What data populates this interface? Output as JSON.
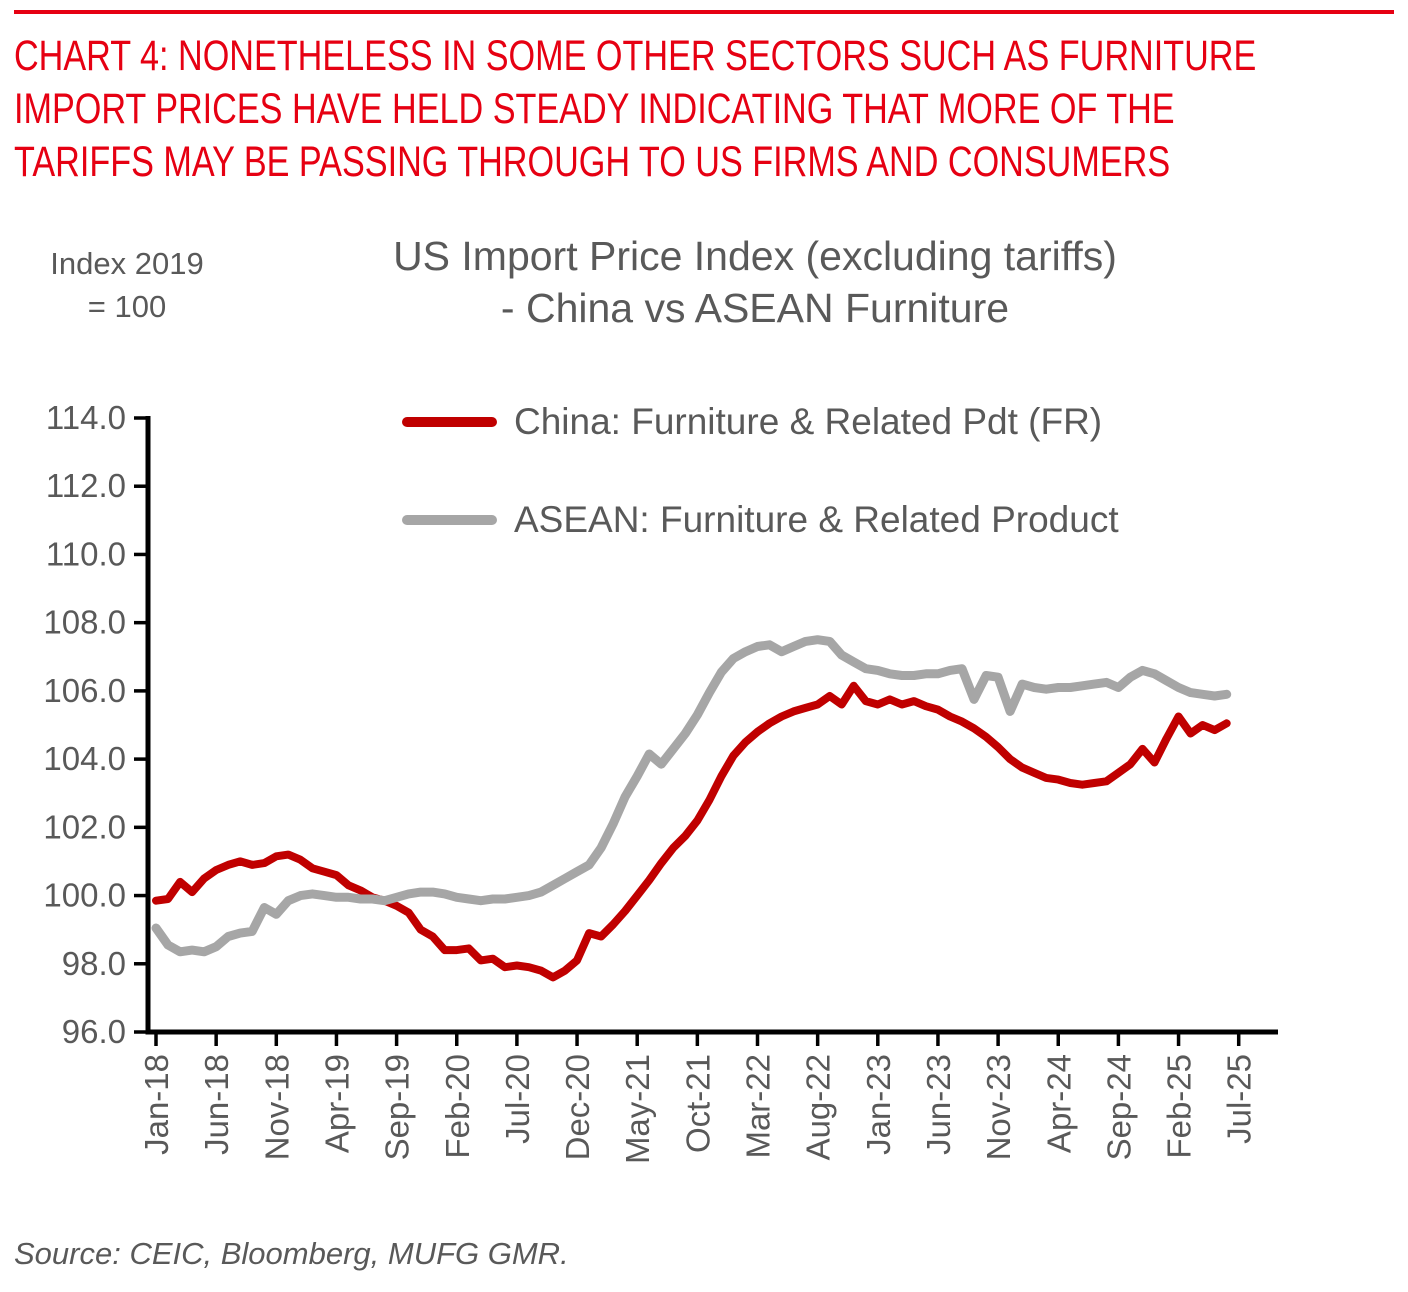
{
  "header": {
    "color": "#e60012",
    "lines": [
      "CHART 4: NONETHELESS IN SOME OTHER SECTORS SUCH AS FURNITURE",
      "IMPORT PRICES HAVE HELD STEADY INDICATING THAT MORE OF THE",
      "TARIFFS MAY BE PASSING THROUGH TO US FIRMS AND CONSUMERS"
    ]
  },
  "source": "Source: CEIC, Bloomberg, MUFG GMR.",
  "chart_data": {
    "type": "line",
    "title_lines": [
      "US Import Price Index (excluding tariffs)",
      "- China vs ASEAN Furniture"
    ],
    "unit_note_lines": [
      "Index 2019",
      "= 100"
    ],
    "ylim": [
      96,
      114
    ],
    "ytick_labels": [
      "96.0",
      "98.0",
      "100.0",
      "102.0",
      "104.0",
      "106.0",
      "108.0",
      "110.0",
      "112.0",
      "114.0"
    ],
    "x_tick_labels": [
      "Jan-18",
      "Jun-18",
      "Nov-18",
      "Apr-19",
      "Sep-19",
      "Feb-20",
      "Jul-20",
      "Dec-20",
      "May-21",
      "Oct-21",
      "Mar-22",
      "Aug-22",
      "Jan-23",
      "Jun-23",
      "Nov-23",
      "Apr-24",
      "Sep-24",
      "Feb-25",
      "Jul-25"
    ],
    "x_label_interval_months": 5,
    "x_start": "Jan-18",
    "frequency": "monthly",
    "grid": false,
    "legend_position": "top-center",
    "axis_color": "#000000",
    "label_color": "#595959",
    "series": [
      {
        "id": "china",
        "name": "China: Furniture & Related Pdt (FR)",
        "color": "#c00000",
        "stroke_width": 8,
        "values": [
          99.85,
          99.9,
          100.4,
          100.1,
          100.5,
          100.75,
          100.9,
          101.0,
          100.9,
          100.95,
          101.15,
          101.2,
          101.05,
          100.8,
          100.7,
          100.6,
          100.3,
          100.15,
          99.95,
          99.85,
          99.7,
          99.5,
          99.0,
          98.8,
          98.4,
          98.4,
          98.45,
          98.1,
          98.15,
          97.9,
          97.95,
          97.9,
          97.8,
          97.6,
          97.8,
          98.1,
          98.9,
          98.8,
          99.15,
          99.55,
          100.0,
          100.45,
          100.95,
          101.4,
          101.75,
          102.2,
          102.8,
          103.5,
          104.1,
          104.5,
          104.8,
          105.05,
          105.25,
          105.4,
          105.5,
          105.6,
          105.85,
          105.6,
          106.15,
          105.7,
          105.6,
          105.75,
          105.6,
          105.7,
          105.55,
          105.45,
          105.25,
          105.1,
          104.9,
          104.65,
          104.35,
          104.0,
          103.75,
          103.6,
          103.45,
          103.4,
          103.3,
          103.25,
          103.3,
          103.35,
          103.6,
          103.85,
          104.3,
          103.9,
          104.6,
          105.25,
          104.75,
          105.0,
          104.85,
          105.05
        ]
      },
      {
        "id": "asean",
        "name": "ASEAN: Furniture & Related Product",
        "color": "#a6a6a6",
        "stroke_width": 9,
        "values": [
          99.05,
          98.55,
          98.35,
          98.4,
          98.35,
          98.5,
          98.8,
          98.9,
          98.95,
          99.65,
          99.45,
          99.85,
          100.0,
          100.05,
          100.0,
          99.95,
          99.95,
          99.9,
          99.9,
          99.85,
          99.95,
          100.05,
          100.1,
          100.1,
          100.05,
          99.95,
          99.9,
          99.85,
          99.9,
          99.9,
          99.95,
          100.0,
          100.1,
          100.3,
          100.5,
          100.7,
          100.9,
          101.4,
          102.1,
          102.9,
          103.5,
          104.15,
          103.85,
          104.3,
          104.75,
          105.3,
          105.95,
          106.55,
          106.95,
          107.15,
          107.3,
          107.35,
          107.15,
          107.3,
          107.45,
          107.5,
          107.45,
          107.05,
          106.85,
          106.65,
          106.6,
          106.5,
          106.45,
          106.45,
          106.5,
          106.5,
          106.6,
          106.65,
          105.75,
          106.45,
          106.4,
          105.4,
          106.2,
          106.1,
          106.05,
          106.1,
          106.1,
          106.15,
          106.2,
          106.25,
          106.1,
          106.4,
          106.6,
          106.5,
          106.3,
          106.1,
          105.95,
          105.9,
          105.85,
          105.9
        ]
      }
    ]
  }
}
